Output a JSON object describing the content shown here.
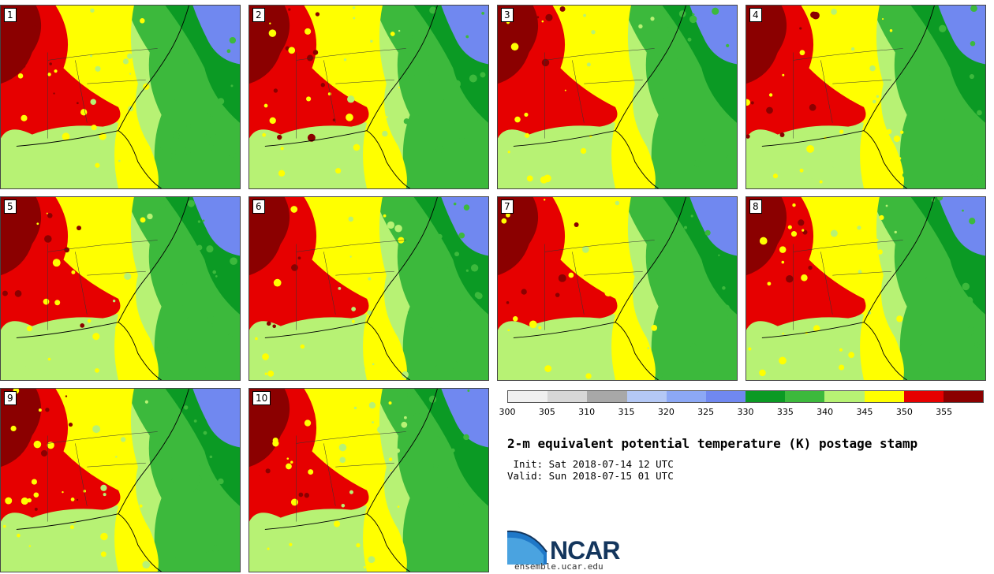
{
  "members": [
    "1",
    "2",
    "3",
    "4",
    "5",
    "6",
    "7",
    "8",
    "9",
    "10"
  ],
  "colorbar": {
    "ticks": [
      "300",
      "305",
      "310",
      "315",
      "320",
      "325",
      "330",
      "335",
      "340",
      "345",
      "350",
      "355"
    ],
    "colors": [
      "#f0f0f0",
      "#d7d7d7",
      "#a8a8a8",
      "#b4c8f5",
      "#8ca8f5",
      "#7088f0",
      "#0b9a24",
      "#3cb93c",
      "#b7f274",
      "#ffff00",
      "#e60000",
      "#8b0000"
    ]
  },
  "title": "2-m equivalent potential temperature (K) postage stamp",
  "init": " Init: Sat 2018-07-14 12 UTC",
  "valid": "Valid: Sun 2018-07-15 01 UTC",
  "logo": {
    "text": "NCAR",
    "site": "ensemble.ucar.edu"
  }
}
